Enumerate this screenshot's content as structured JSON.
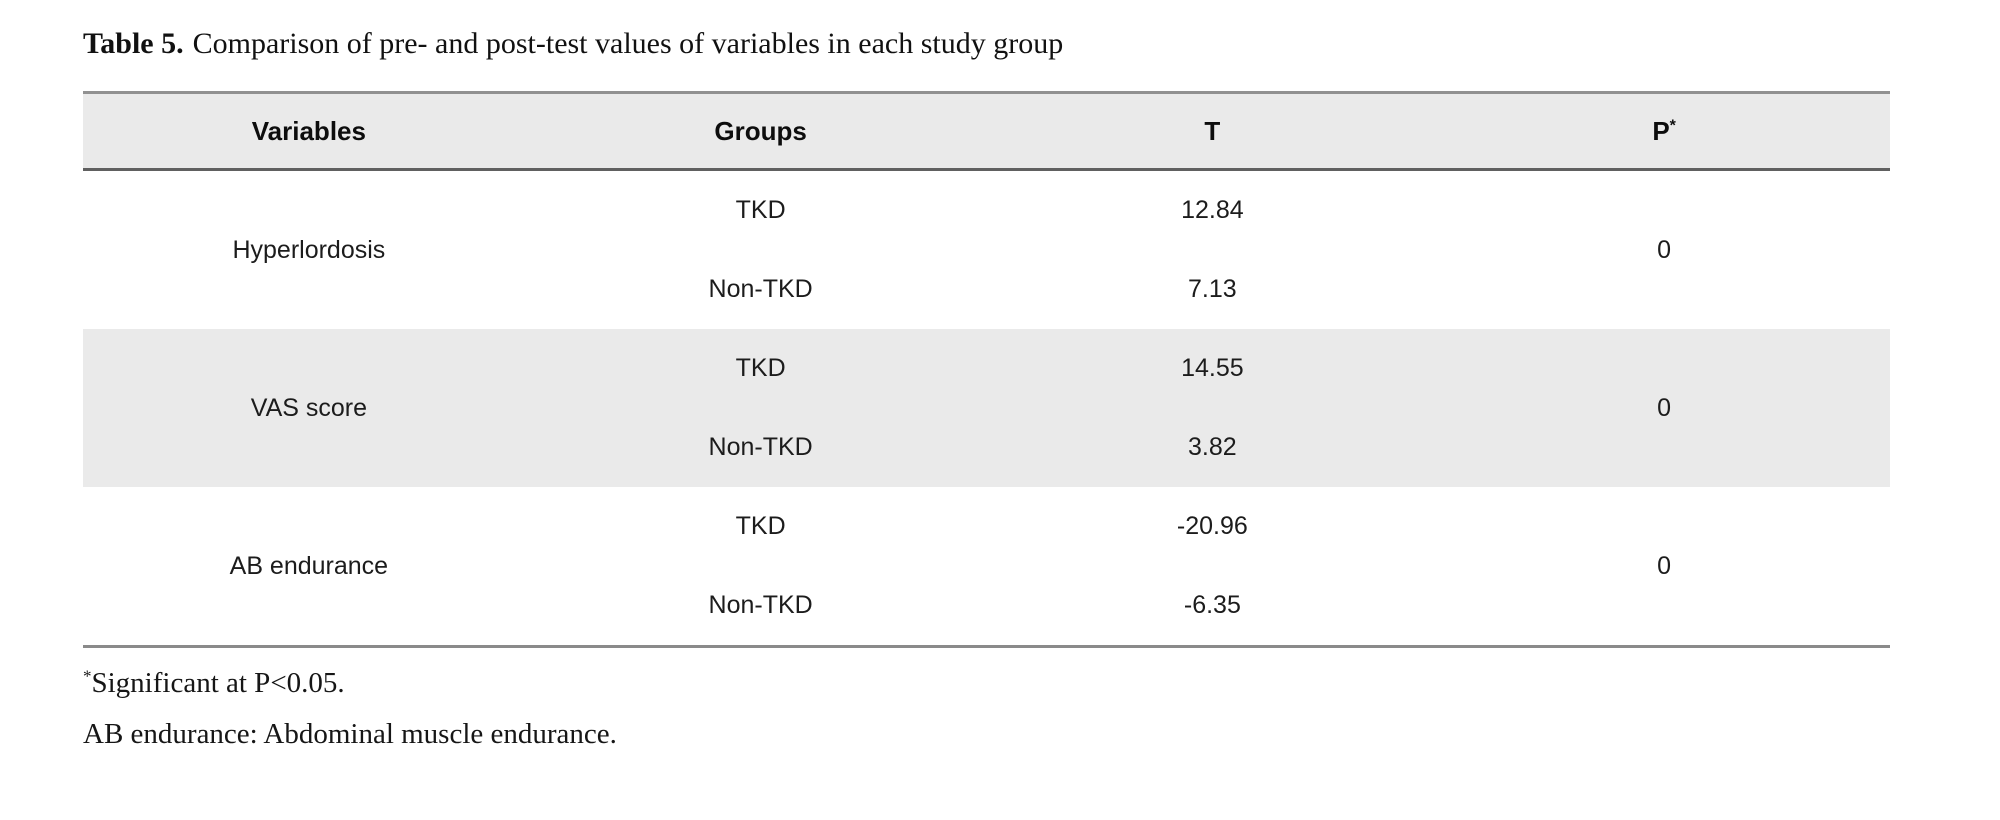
{
  "title": {
    "label": "Table 5.",
    "text": "Comparison of pre- and post-test values of variables in each study group"
  },
  "table": {
    "headers": {
      "variables": "Variables",
      "groups": "Groups",
      "t": "T",
      "p": "P",
      "p_sup": "*"
    },
    "rows": [
      {
        "variable": "Hyperlordosis",
        "p": "0",
        "groups": [
          {
            "group": "TKD",
            "t": "12.84"
          },
          {
            "group": "Non-TKD",
            "t": "7.13"
          }
        ]
      },
      {
        "variable": "VAS score",
        "p": "0",
        "groups": [
          {
            "group": "TKD",
            "t": "14.55"
          },
          {
            "group": "Non-TKD",
            "t": "3.82"
          }
        ]
      },
      {
        "variable": "AB endurance",
        "p": "0",
        "groups": [
          {
            "group": "TKD",
            "t": "-20.96"
          },
          {
            "group": "Non-TKD",
            "t": "-6.35"
          }
        ]
      }
    ]
  },
  "footnotes": [
    {
      "sup": "*",
      "text": "Significant at P<0.05."
    },
    {
      "sup": "",
      "text": "AB endurance: Abdominal muscle endurance."
    }
  ],
  "colors": {
    "band": "#eaeaea",
    "border_top": "#919191",
    "border_header": "#606060",
    "border_bottom": "#8a8a8a",
    "text": "#1a1a1a"
  }
}
